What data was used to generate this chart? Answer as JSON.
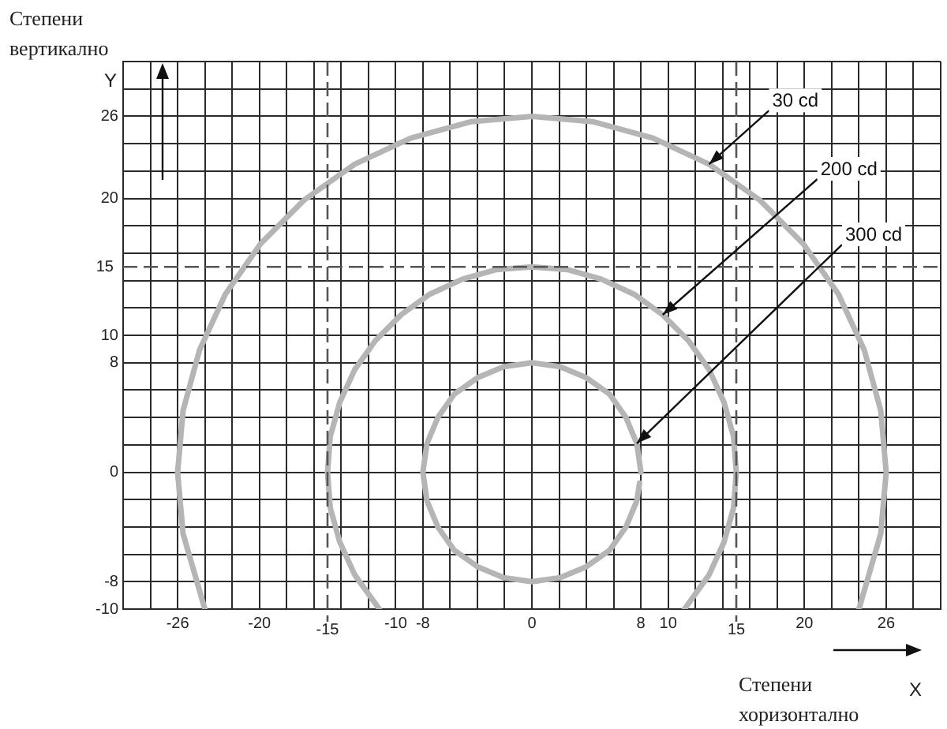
{
  "chart_data": {
    "type": "line",
    "xlabel": "Степени хоризонтално",
    "ylabel": "Степени вертикално",
    "xlim": [
      -30,
      30
    ],
    "xticks": [
      {
        "value": -30,
        "label": null
      },
      {
        "value": -28,
        "label": null
      },
      -26,
      {
        "value": -24,
        "label": null
      },
      {
        "value": -22,
        "label": null
      },
      -20,
      {
        "value": -18,
        "label": null
      },
      {
        "value": -16,
        "label": null
      },
      {
        "value": -14,
        "label": null
      },
      {
        "value": -12,
        "label": null
      },
      -10,
      -8,
      {
        "value": -6,
        "label": null
      },
      {
        "value": -4,
        "label": null
      },
      {
        "value": -2,
        "label": null
      },
      0,
      {
        "value": 2,
        "label": null
      },
      {
        "value": 4,
        "label": null
      },
      {
        "value": 6,
        "label": null
      },
      8,
      10,
      {
        "value": 12,
        "label": null
      },
      {
        "value": 14,
        "label": null
      },
      {
        "value": 16,
        "label": null
      },
      {
        "value": 18,
        "label": null
      },
      20,
      {
        "value": 22,
        "label": null
      },
      {
        "value": 24,
        "label": null
      },
      26,
      {
        "value": 28,
        "label": null
      },
      {
        "value": 30,
        "label": null
      }
    ],
    "ylim": [
      -10,
      30
    ],
    "yticks": [
      -10,
      -8,
      {
        "value": -6,
        "label": null
      },
      {
        "value": -4,
        "label": null
      },
      {
        "value": -2,
        "label": null
      },
      0,
      {
        "value": 2,
        "label": null
      },
      {
        "value": 4,
        "label": null
      },
      {
        "value": 6,
        "label": null
      },
      8,
      10,
      {
        "value": 12,
        "label": null
      },
      {
        "value": 14,
        "label": null
      },
      {
        "value": 16,
        "label": null
      },
      {
        "value": 18,
        "label": null
      },
      20,
      {
        "value": 22,
        "label": null
      },
      {
        "value": 24,
        "label": null
      },
      26,
      {
        "value": 28,
        "label": null
      },
      {
        "value": 30,
        "label": null
      }
    ],
    "grid": true,
    "marker": "none",
    "line_style": "solid",
    "series": [
      {
        "color": "#b5b5b5",
        "x": [
          24,
          25.6,
          26,
          25.6,
          24.4,
          22.5,
          19.9,
          16.7,
          13,
          8.9,
          4.5,
          0,
          -4.5,
          -8.9,
          -13,
          -16.7,
          -19.9,
          -22.5,
          -24.4,
          -25.6,
          -26,
          -25.6,
          -24
        ],
        "values": [
          -10,
          -4.5,
          0,
          4.5,
          8.9,
          13,
          16.7,
          19.9,
          22.5,
          24.4,
          25.6,
          26,
          25.6,
          24.4,
          22.5,
          19.9,
          16.7,
          13,
          8.9,
          4.5,
          0,
          -4.5,
          -10
        ]
      },
      {
        "color": "#b5b5b5",
        "x": [
          11.2,
          13,
          14.1,
          14.8,
          15,
          14.8,
          14.1,
          13,
          11.5,
          9.6,
          7.5,
          5.1,
          2.6,
          0,
          -2.6,
          -5.1,
          -7.5,
          -9.6,
          -11.5,
          -13,
          -14.1,
          -14.8,
          -15,
          -14.8,
          -14.1,
          -13,
          -11.2
        ],
        "values": [
          -10,
          -7.5,
          -5.1,
          -2.6,
          0,
          2.6,
          5.1,
          7.5,
          9.6,
          11.5,
          13,
          14.1,
          14.8,
          15,
          14.8,
          14.1,
          13,
          11.5,
          9.6,
          7.5,
          5.1,
          2.6,
          0,
          -2.6,
          -5.1,
          -7.5,
          -10
        ]
      },
      {
        "color": "#b5b5b5",
        "x": [
          8,
          7.7,
          6.9,
          5.7,
          4,
          2.1,
          0,
          -2.1,
          -4,
          -5.7,
          -6.9,
          -7.7,
          -8,
          -7.7,
          -6.9,
          -5.7,
          -4,
          -2.1,
          0,
          2.1,
          4,
          5.7,
          6.9,
          7.7,
          7.9
        ],
        "values": [
          0,
          2.1,
          4,
          5.7,
          6.9,
          7.7,
          8,
          7.7,
          6.9,
          5.7,
          4,
          2.1,
          0,
          -2.1,
          -4,
          -5.7,
          -6.9,
          -7.7,
          -8,
          -7.7,
          -6.9,
          -5.7,
          -4,
          -2.1,
          -0.8
        ]
      }
    ],
    "ref_lines": [
      {
        "axis": "y",
        "value": 15,
        "label": "15",
        "line_style": "dashed",
        "color": "#555555"
      },
      {
        "axis": "x",
        "value": -15,
        "label": "-15",
        "line_style": "dashed",
        "color": "#555555"
      },
      {
        "axis": "x",
        "value": 15,
        "label": "15",
        "line_style": "dashed",
        "color": "#555555"
      }
    ],
    "annotations": [
      {
        "text": "30 cd",
        "x": 13,
        "y": 22.5
      },
      {
        "text": "200 cd",
        "x": 9.6,
        "y": 11.5
      },
      {
        "text": "300 cd",
        "x": 7.7,
        "y": 2.1
      },
      "Y",
      "X"
    ]
  }
}
